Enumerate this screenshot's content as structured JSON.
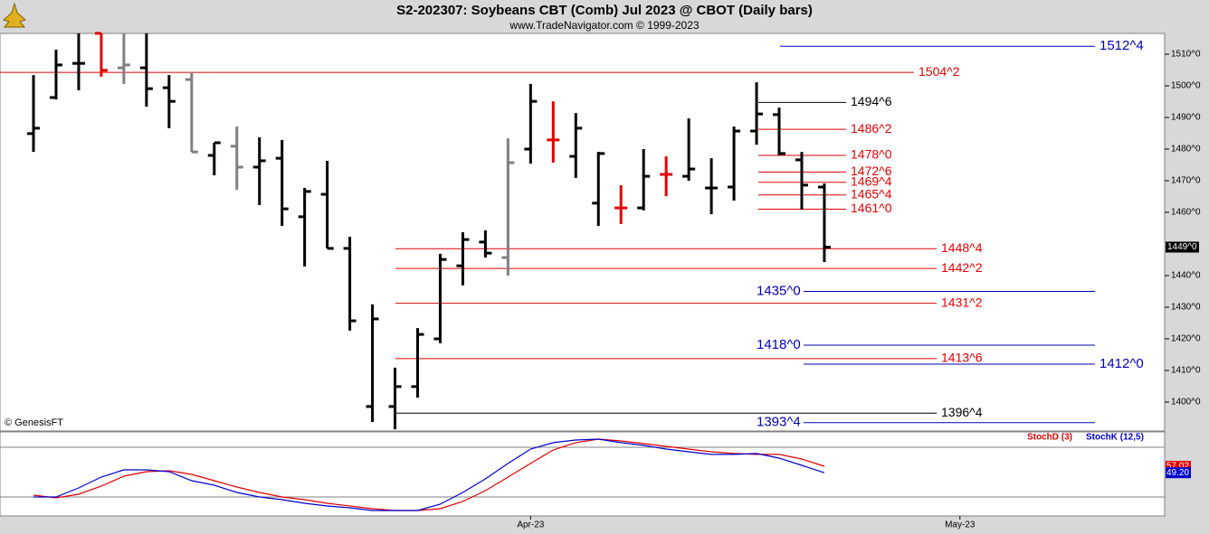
{
  "chart_data": {
    "type": "ohlc",
    "title": "S2-202307:  Soybeans CBT (Comb) Jul 2023 @ CBOT  (Daily bars)",
    "subtitle": "www.TradeNavigator.com © 1999-2023",
    "credit": "© GenesisFT",
    "open": [
      1484.9,
      1496.3,
      1507.1,
      1516.6,
      1505.7,
      1505.7,
      1499.4,
      1502.0,
      1478.0,
      1480.9,
      1474.3,
      1477.1,
      1458.6,
      1465.7,
      1448.6,
      1398.6,
      1398.6,
      1404.9,
      1420.0,
      1443.1,
      1450.6,
      1445.7,
      1480.0,
      1482.9,
      1477.7,
      1462.9,
      1461.4,
      1461.4,
      1472.0,
      1471.4,
      1467.7,
      1468.0,
      1485.7,
      1490.9,
      1476.6,
      1468.0
    ],
    "high": [
      1503.4,
      1511.4,
      1516.6,
      1516.6,
      1516.6,
      1516.6,
      1503.4,
      1504.3,
      1482.0,
      1487.1,
      1483.7,
      1482.9,
      1467.7,
      1476.3,
      1452.3,
      1430.9,
      1410.9,
      1423.4,
      1446.9,
      1453.7,
      1454.3,
      1483.4,
      1500.6,
      1495.1,
      1491.4,
      1479.1,
      1468.6,
      1480.0,
      1477.7,
      1489.7,
      1477.1,
      1487.1,
      1501.1,
      1493.1,
      1479.1,
      1469.1
    ],
    "low": [
      1479.1,
      1495.7,
      1498.6,
      1502.9,
      1500.6,
      1493.4,
      1486.6,
      1479.1,
      1471.7,
      1467.1,
      1462.3,
      1455.7,
      1442.9,
      1448.6,
      1422.6,
      1393.7,
      1391.4,
      1401.4,
      1418.6,
      1436.9,
      1445.7,
      1440.0,
      1475.4,
      1475.7,
      1470.9,
      1455.7,
      1456.3,
      1460.6,
      1465.1,
      1470.0,
      1459.4,
      1463.7,
      1481.4,
      1478.0,
      1460.9,
      1444.3
    ],
    "close": [
      1486.6,
      1506.6,
      1507.1,
      1504.9,
      1506.6,
      1499.1,
      1495.1,
      1479.1,
      1482.0,
      1474.3,
      1476.3,
      1461.1,
      1466.6,
      1448.6,
      1425.7,
      1426.3,
      1404.9,
      1421.4,
      1445.1,
      1451.4,
      1447.1,
      1475.7,
      1495.1,
      1482.9,
      1486.6,
      1478.6,
      1461.4,
      1471.4,
      1472.0,
      1473.7,
      1467.7,
      1485.7,
      1491.1,
      1478.6,
      1468.6,
      1449.0
    ],
    "bar_colors": [
      "#000000",
      "#000000",
      "#000000",
      "#e00000",
      "#808080",
      "#000000",
      "#000000",
      "#808080",
      "#000000",
      "#808080",
      "#000000",
      "#000000",
      "#000000",
      "#000000",
      "#000000",
      "#000000",
      "#000000",
      "#000000",
      "#000000",
      "#000000",
      "#000000",
      "#808080",
      "#000000",
      "#e00000",
      "#000000",
      "#000000",
      "#e00000",
      "#000000",
      "#e00000",
      "#000000",
      "#000000",
      "#000000",
      "#000000",
      "#000000",
      "#000000",
      "#000000"
    ],
    "ylim": [
      1390.86,
      1516.57
    ],
    "yticks": [
      {
        "value": 1510,
        "label": "1510^0"
      },
      {
        "value": 1500,
        "label": "1500^0"
      },
      {
        "value": 1490,
        "label": "1490^0"
      },
      {
        "value": 1480,
        "label": "1480^0"
      },
      {
        "value": 1470,
        "label": "1470^0"
      },
      {
        "value": 1460,
        "label": "1460^0"
      },
      {
        "value": 1440,
        "label": "1440^0"
      },
      {
        "value": 1430,
        "label": "1430^0"
      },
      {
        "value": 1420,
        "label": "1420^0"
      },
      {
        "value": 1410,
        "label": "1410^0"
      },
      {
        "value": 1400,
        "label": "1400^0"
      }
    ],
    "last_price": {
      "value": 1449,
      "label": "1449^0"
    },
    "levels": [
      {
        "value": 1512.5,
        "label": "1512^4",
        "color": "#0000b0"
      },
      {
        "value": 1504.25,
        "label": "1504^2",
        "color": "#e00000"
      },
      {
        "value": 1494.75,
        "label": "1494^6",
        "color": "#000000"
      },
      {
        "value": 1486.25,
        "label": "1486^2",
        "color": "#e00000"
      },
      {
        "value": 1478,
        "label": "1478^0",
        "color": "#e00000"
      },
      {
        "value": 1472.75,
        "label": "1472^6",
        "color": "#e00000"
      },
      {
        "value": 1469.5,
        "label": "1469^4",
        "color": "#e00000"
      },
      {
        "value": 1465.5,
        "label": "1465^4",
        "color": "#e00000"
      },
      {
        "value": 1461,
        "label": "1461^0",
        "color": "#e00000"
      },
      {
        "value": 1448.5,
        "label": "1448^4",
        "color": "#e00000"
      },
      {
        "value": 1442.25,
        "label": "1442^2",
        "color": "#e00000"
      },
      {
        "value": 1435,
        "label": "1435^0",
        "color": "#0000b0"
      },
      {
        "value": 1431.25,
        "label": "1431^2",
        "color": "#e00000"
      },
      {
        "value": 1418,
        "label": "1418^0",
        "color": "#0000b0"
      },
      {
        "value": 1413.75,
        "label": "1413^6",
        "color": "#e00000"
      },
      {
        "value": 1412,
        "label": "1412^0",
        "color": "#0000b0"
      },
      {
        "value": 1396.5,
        "label": "1396^4",
        "color": "#000000"
      },
      {
        "value": 1393.5,
        "label": "1393^4",
        "color": "#0000b0"
      }
    ],
    "xticks": [
      {
        "value": 22,
        "label": "Apr-23"
      },
      {
        "value": 41,
        "label": "May-23"
      }
    ],
    "indicator": {
      "type": "line",
      "ylim": [
        -2.9,
        98.5
      ],
      "reference_lines": [
        80,
        20
      ],
      "series": [
        {
          "name": "StochD (3)",
          "color": "#e00000",
          "values": [
            22.2,
            18.9,
            23.3,
            33.1,
            45.1,
            50.5,
            51.6,
            47.3,
            39.6,
            32.0,
            25.5,
            20.0,
            16.7,
            12.4,
            9.1,
            5.8,
            3.6,
            3.6,
            5.8,
            14.5,
            27.6,
            44.0,
            60.4,
            76.7,
            85.5,
            89.8,
            87.6,
            84.4,
            81.1,
            77.8,
            74.5,
            72.4,
            71.3,
            71.3,
            65.8,
            57.02
          ],
          "value_labels": [
            null,
            null,
            null,
            null,
            null,
            null,
            null,
            null,
            null,
            null,
            null,
            null,
            null,
            null,
            null,
            null,
            null,
            null,
            null,
            null,
            null,
            null,
            null,
            null,
            null,
            null,
            null,
            null,
            null,
            null,
            null,
            null,
            null,
            null,
            null,
            "57.02"
          ]
        },
        {
          "name": "StochK (12,5)",
          "color": "#0000cc",
          "values": [
            20.0,
            20.0,
            30.9,
            44.0,
            52.7,
            52.7,
            50.5,
            39.6,
            34.2,
            25.5,
            20.0,
            16.7,
            12.4,
            9.1,
            6.9,
            3.6,
            3.6,
            3.6,
            11.3,
            25.5,
            41.8,
            60.4,
            77.8,
            85.5,
            88.7,
            89.8,
            85.5,
            82.2,
            77.8,
            74.5,
            71.3,
            71.3,
            72.4,
            66.9,
            58.2,
            49.2
          ],
          "value_labels": [
            null,
            null,
            null,
            null,
            null,
            null,
            null,
            null,
            null,
            null,
            null,
            null,
            null,
            null,
            null,
            null,
            null,
            null,
            null,
            null,
            null,
            null,
            null,
            null,
            null,
            null,
            null,
            null,
            null,
            null,
            null,
            null,
            null,
            null,
            null,
            "49.20"
          ]
        }
      ]
    }
  }
}
